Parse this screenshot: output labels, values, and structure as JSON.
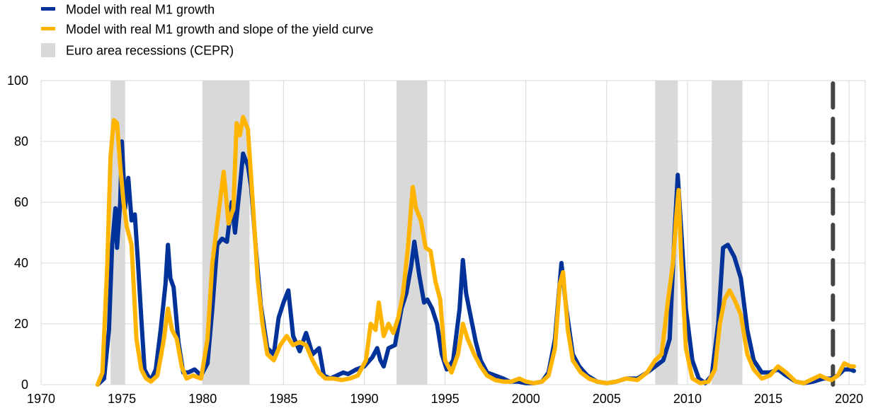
{
  "colors": {
    "series_1": "#003299",
    "series_2": "#FFB400",
    "recession_band": "#D9D9D9",
    "gridline": "#D9D9D9",
    "marker_line": "#444444"
  },
  "legend": {
    "items": [
      {
        "label": "Model with real M1 growth",
        "color": "#003299",
        "kind": "line"
      },
      {
        "label": "Model with real M1 growth and slope of the yield curve",
        "color": "#FFB400",
        "kind": "line"
      },
      {
        "label": "Euro area recessions (CEPR)",
        "color": "#D9D9D9",
        "kind": "band"
      }
    ]
  },
  "chart_data": {
    "type": "line",
    "title": "",
    "xlabel": "",
    "ylabel": "",
    "xlim": [
      1970,
      2021
    ],
    "ylim": [
      0,
      100
    ],
    "x_ticks": [
      1970,
      1975,
      1980,
      1985,
      1990,
      1995,
      2000,
      2005,
      2010,
      2015,
      2020
    ],
    "y_ticks": [
      0,
      20,
      40,
      60,
      80,
      100
    ],
    "grid": {
      "vertical": true,
      "horizontal": true
    },
    "legend_position": "top-left",
    "recessions": [
      [
        1974.3,
        1975.2
      ],
      [
        1980.0,
        1982.9
      ],
      [
        1992.0,
        1993.9
      ],
      [
        2008.0,
        2009.4
      ],
      [
        2011.5,
        2013.4
      ]
    ],
    "vertical_marker": {
      "x": 2019.0,
      "style": "dashed"
    },
    "series": [
      {
        "name": "Model with real M1 growth",
        "color": "#003299",
        "points": [
          [
            1973.5,
            0
          ],
          [
            1973.9,
            2
          ],
          [
            1974.2,
            18
          ],
          [
            1974.4,
            46
          ],
          [
            1974.6,
            58
          ],
          [
            1974.7,
            45
          ],
          [
            1974.9,
            60
          ],
          [
            1975.0,
            80
          ],
          [
            1975.2,
            58
          ],
          [
            1975.4,
            68
          ],
          [
            1975.6,
            54
          ],
          [
            1975.8,
            56
          ],
          [
            1976.0,
            40
          ],
          [
            1976.2,
            22
          ],
          [
            1976.4,
            5
          ],
          [
            1976.6,
            3
          ],
          [
            1976.8,
            1.5
          ],
          [
            1977.1,
            5
          ],
          [
            1977.4,
            18
          ],
          [
            1977.7,
            33
          ],
          [
            1977.85,
            46
          ],
          [
            1978.0,
            35
          ],
          [
            1978.2,
            32
          ],
          [
            1978.5,
            14
          ],
          [
            1978.8,
            4
          ],
          [
            1979.1,
            4
          ],
          [
            1979.5,
            5
          ],
          [
            1979.9,
            3
          ],
          [
            1980.3,
            7
          ],
          [
            1980.6,
            25
          ],
          [
            1980.9,
            46
          ],
          [
            1981.2,
            48
          ],
          [
            1981.5,
            47
          ],
          [
            1981.8,
            60
          ],
          [
            1982.0,
            50
          ],
          [
            1982.3,
            65
          ],
          [
            1982.5,
            76
          ],
          [
            1982.8,
            72
          ],
          [
            1983.0,
            65
          ],
          [
            1983.3,
            44
          ],
          [
            1983.6,
            26
          ],
          [
            1984.0,
            12
          ],
          [
            1984.4,
            10
          ],
          [
            1984.7,
            22
          ],
          [
            1985.0,
            27
          ],
          [
            1985.3,
            31
          ],
          [
            1985.6,
            16
          ],
          [
            1986.0,
            11
          ],
          [
            1986.4,
            17
          ],
          [
            1986.8,
            10
          ],
          [
            1987.2,
            12
          ],
          [
            1987.5,
            3
          ],
          [
            1987.9,
            2
          ],
          [
            1988.3,
            3
          ],
          [
            1988.7,
            4
          ],
          [
            1989.0,
            3.5
          ],
          [
            1989.5,
            5
          ],
          [
            1990.0,
            6
          ],
          [
            1990.5,
            9
          ],
          [
            1990.8,
            12
          ],
          [
            1991.0,
            8
          ],
          [
            1991.2,
            6
          ],
          [
            1991.5,
            12
          ],
          [
            1991.9,
            13
          ],
          [
            1992.3,
            25
          ],
          [
            1992.6,
            30
          ],
          [
            1992.9,
            39
          ],
          [
            1993.1,
            47
          ],
          [
            1993.4,
            36
          ],
          [
            1993.7,
            27
          ],
          [
            1993.9,
            28
          ],
          [
            1994.2,
            25
          ],
          [
            1994.5,
            20
          ],
          [
            1994.8,
            10
          ],
          [
            1995.1,
            5
          ],
          [
            1995.5,
            8
          ],
          [
            1995.9,
            25
          ],
          [
            1996.1,
            41
          ],
          [
            1996.3,
            30
          ],
          [
            1996.6,
            22
          ],
          [
            1996.9,
            14
          ],
          [
            1997.2,
            8
          ],
          [
            1997.6,
            4
          ],
          [
            1998.1,
            3
          ],
          [
            1998.6,
            2
          ],
          [
            1999.0,
            1
          ],
          [
            1999.5,
            1
          ],
          [
            2000.0,
            0.5
          ],
          [
            2000.5,
            0.5
          ],
          [
            2001.0,
            1
          ],
          [
            2001.4,
            4
          ],
          [
            2001.8,
            15
          ],
          [
            2002.2,
            40
          ],
          [
            2002.5,
            25
          ],
          [
            2002.9,
            10
          ],
          [
            2003.3,
            6
          ],
          [
            2003.8,
            3
          ],
          [
            2004.4,
            1
          ],
          [
            2005.0,
            0.5
          ],
          [
            2005.6,
            1
          ],
          [
            2006.2,
            2
          ],
          [
            2006.9,
            2
          ],
          [
            2007.5,
            4
          ],
          [
            2008.0,
            6
          ],
          [
            2008.5,
            8
          ],
          [
            2008.9,
            15
          ],
          [
            2009.2,
            50
          ],
          [
            2009.4,
            69
          ],
          [
            2009.6,
            52
          ],
          [
            2009.9,
            25
          ],
          [
            2010.3,
            8
          ],
          [
            2010.7,
            2
          ],
          [
            2011.1,
            0.5
          ],
          [
            2011.5,
            3
          ],
          [
            2011.9,
            20
          ],
          [
            2012.2,
            45
          ],
          [
            2012.5,
            46
          ],
          [
            2012.9,
            42
          ],
          [
            2013.3,
            35
          ],
          [
            2013.7,
            18
          ],
          [
            2014.1,
            8
          ],
          [
            2014.6,
            4
          ],
          [
            2015.1,
            4
          ],
          [
            2015.6,
            5
          ],
          [
            2016.1,
            3
          ],
          [
            2016.7,
            1
          ],
          [
            2017.2,
            0.5
          ],
          [
            2017.8,
            1
          ],
          [
            2018.4,
            2
          ],
          [
            2018.9,
            2
          ],
          [
            2019.3,
            3
          ],
          [
            2019.7,
            5
          ],
          [
            2020.1,
            5
          ],
          [
            2020.3,
            4.5
          ]
        ]
      },
      {
        "name": "Model with real M1 growth and slope of the yield curve",
        "color": "#FFB400",
        "points": [
          [
            1973.5,
            0
          ],
          [
            1973.8,
            4
          ],
          [
            1974.1,
            40
          ],
          [
            1974.3,
            75
          ],
          [
            1974.5,
            87
          ],
          [
            1974.7,
            86
          ],
          [
            1974.9,
            72
          ],
          [
            1975.1,
            60
          ],
          [
            1975.3,
            52
          ],
          [
            1975.6,
            46
          ],
          [
            1975.9,
            15
          ],
          [
            1976.2,
            5
          ],
          [
            1976.5,
            2
          ],
          [
            1976.8,
            1
          ],
          [
            1977.2,
            3
          ],
          [
            1977.6,
            15
          ],
          [
            1977.85,
            25
          ],
          [
            1978.1,
            18
          ],
          [
            1978.4,
            15
          ],
          [
            1978.7,
            6
          ],
          [
            1979.0,
            2
          ],
          [
            1979.4,
            3
          ],
          [
            1979.9,
            2
          ],
          [
            1980.3,
            15
          ],
          [
            1980.6,
            40
          ],
          [
            1980.9,
            53
          ],
          [
            1981.3,
            70
          ],
          [
            1981.6,
            53
          ],
          [
            1981.9,
            58
          ],
          [
            1982.1,
            86
          ],
          [
            1982.3,
            82
          ],
          [
            1982.5,
            88
          ],
          [
            1982.8,
            84
          ],
          [
            1983.1,
            60
          ],
          [
            1983.4,
            35
          ],
          [
            1983.7,
            20
          ],
          [
            1984.0,
            10
          ],
          [
            1984.4,
            8
          ],
          [
            1984.8,
            13
          ],
          [
            1985.2,
            16
          ],
          [
            1985.6,
            13
          ],
          [
            1986.0,
            14
          ],
          [
            1986.4,
            13
          ],
          [
            1986.8,
            8
          ],
          [
            1987.2,
            4
          ],
          [
            1987.6,
            2
          ],
          [
            1988.1,
            2
          ],
          [
            1988.6,
            1.5
          ],
          [
            1989.1,
            2
          ],
          [
            1989.6,
            3
          ],
          [
            1990.1,
            8
          ],
          [
            1990.4,
            20
          ],
          [
            1990.7,
            18
          ],
          [
            1990.9,
            27
          ],
          [
            1991.2,
            16
          ],
          [
            1991.5,
            20
          ],
          [
            1991.8,
            17
          ],
          [
            1992.1,
            22
          ],
          [
            1992.4,
            30
          ],
          [
            1992.7,
            45
          ],
          [
            1993.0,
            65
          ],
          [
            1993.2,
            58
          ],
          [
            1993.5,
            54
          ],
          [
            1993.8,
            45
          ],
          [
            1994.1,
            44
          ],
          [
            1994.4,
            34
          ],
          [
            1994.7,
            28
          ],
          [
            1995.0,
            8
          ],
          [
            1995.4,
            4
          ],
          [
            1995.8,
            10
          ],
          [
            1996.1,
            20
          ],
          [
            1996.4,
            15
          ],
          [
            1996.8,
            10
          ],
          [
            1997.2,
            6
          ],
          [
            1997.6,
            3
          ],
          [
            1998.1,
            1.5
          ],
          [
            1998.6,
            1
          ],
          [
            1999.1,
            1
          ],
          [
            1999.6,
            2
          ],
          [
            2000.0,
            1
          ],
          [
            2000.5,
            0.5
          ],
          [
            2001.0,
            1
          ],
          [
            2001.4,
            3
          ],
          [
            2001.8,
            12
          ],
          [
            2002.1,
            33
          ],
          [
            2002.3,
            37
          ],
          [
            2002.6,
            18
          ],
          [
            2002.9,
            8
          ],
          [
            2003.4,
            4
          ],
          [
            2003.9,
            2
          ],
          [
            2004.4,
            1
          ],
          [
            2005.0,
            0.5
          ],
          [
            2005.6,
            1
          ],
          [
            2006.2,
            2
          ],
          [
            2006.9,
            1.5
          ],
          [
            2007.5,
            4
          ],
          [
            2008.0,
            8
          ],
          [
            2008.4,
            10
          ],
          [
            2008.8,
            28
          ],
          [
            2009.1,
            40
          ],
          [
            2009.3,
            55
          ],
          [
            2009.45,
            64
          ],
          [
            2009.6,
            42
          ],
          [
            2009.9,
            12
          ],
          [
            2010.3,
            2
          ],
          [
            2010.8,
            0.5
          ],
          [
            2011.3,
            1
          ],
          [
            2011.7,
            5
          ],
          [
            2012.0,
            20
          ],
          [
            2012.3,
            28
          ],
          [
            2012.6,
            31
          ],
          [
            2012.9,
            28
          ],
          [
            2013.3,
            23
          ],
          [
            2013.7,
            10
          ],
          [
            2014.1,
            5
          ],
          [
            2014.6,
            2
          ],
          [
            2015.1,
            3
          ],
          [
            2015.6,
            6
          ],
          [
            2016.1,
            4
          ],
          [
            2016.7,
            1
          ],
          [
            2017.2,
            0.5
          ],
          [
            2017.8,
            2
          ],
          [
            2018.2,
            3
          ],
          [
            2018.6,
            2
          ],
          [
            2018.9,
            1.5
          ],
          [
            2019.3,
            3
          ],
          [
            2019.7,
            7
          ],
          [
            2020.1,
            6
          ],
          [
            2020.3,
            6
          ]
        ]
      }
    ]
  }
}
